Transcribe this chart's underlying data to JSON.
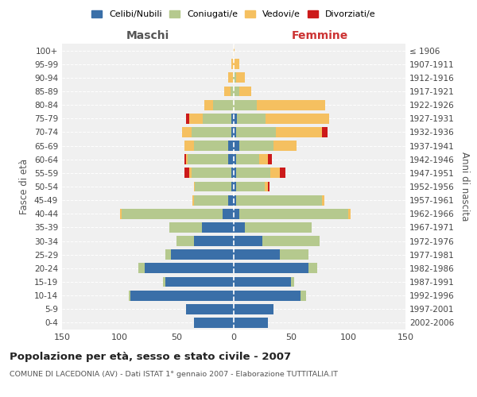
{
  "age_groups": [
    "0-4",
    "5-9",
    "10-14",
    "15-19",
    "20-24",
    "25-29",
    "30-34",
    "35-39",
    "40-44",
    "45-49",
    "50-54",
    "55-59",
    "60-64",
    "65-69",
    "70-74",
    "75-79",
    "80-84",
    "85-89",
    "90-94",
    "95-99",
    "100+"
  ],
  "birth_years": [
    "2002-2006",
    "1997-2001",
    "1992-1996",
    "1987-1991",
    "1982-1986",
    "1977-1981",
    "1972-1976",
    "1967-1971",
    "1962-1966",
    "1957-1961",
    "1952-1956",
    "1947-1951",
    "1942-1946",
    "1937-1941",
    "1932-1936",
    "1927-1931",
    "1922-1926",
    "1917-1921",
    "1912-1916",
    "1907-1911",
    "≤ 1906"
  ],
  "colors": {
    "celibe": "#3a6fa8",
    "coniugato": "#b5c98e",
    "vedovo": "#f5c060",
    "divorziato": "#cc1a1a"
  },
  "male": {
    "celibe": [
      35,
      42,
      90,
      60,
      78,
      55,
      35,
      28,
      10,
      5,
      2,
      2,
      5,
      5,
      2,
      2,
      0,
      0,
      0,
      0,
      0
    ],
    "coniugato": [
      0,
      0,
      2,
      2,
      5,
      5,
      15,
      28,
      88,
      30,
      32,
      35,
      35,
      30,
      35,
      25,
      18,
      3,
      1,
      0,
      0
    ],
    "vedovo": [
      0,
      0,
      0,
      0,
      0,
      0,
      0,
      0,
      1,
      1,
      1,
      2,
      2,
      8,
      8,
      12,
      8,
      5,
      4,
      2,
      0
    ],
    "divorziato": [
      0,
      0,
      0,
      0,
      0,
      0,
      0,
      0,
      0,
      0,
      0,
      4,
      1,
      0,
      0,
      3,
      0,
      0,
      0,
      0,
      0
    ]
  },
  "female": {
    "nubile": [
      30,
      35,
      58,
      50,
      65,
      40,
      25,
      10,
      5,
      2,
      2,
      2,
      2,
      5,
      2,
      3,
      0,
      0,
      0,
      0,
      0
    ],
    "coniugata": [
      0,
      0,
      5,
      3,
      8,
      25,
      50,
      58,
      95,
      75,
      25,
      30,
      20,
      30,
      35,
      25,
      20,
      5,
      2,
      0,
      0
    ],
    "vedova": [
      0,
      0,
      0,
      0,
      0,
      0,
      0,
      0,
      2,
      2,
      3,
      8,
      8,
      20,
      40,
      55,
      60,
      10,
      8,
      5,
      1
    ],
    "divorziata": [
      0,
      0,
      0,
      0,
      0,
      0,
      0,
      0,
      0,
      0,
      1,
      5,
      3,
      0,
      5,
      0,
      0,
      0,
      0,
      0,
      0
    ]
  },
  "title": "Popolazione per età, sesso e stato civile - 2007",
  "subtitle": "COMUNE DI LACEDONIA (AV) - Dati ISTAT 1° gennaio 2007 - Elaborazione TUTTITALIA.IT",
  "xlabel_left": "Maschi",
  "xlabel_right": "Femmine",
  "ylabel_left": "Fasce di età",
  "ylabel_right": "Anni di nascita",
  "xlim": 150,
  "legend_labels": [
    "Celibi/Nubili",
    "Coniugati/e",
    "Vedovi/e",
    "Divorziati/e"
  ],
  "background_color": "#ffffff",
  "plot_bg_color": "#f0f0f0",
  "grid_color": "#cccccc"
}
